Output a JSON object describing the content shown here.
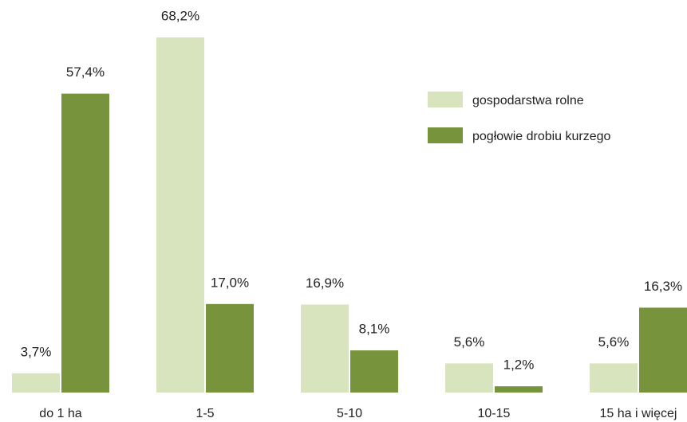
{
  "chart_data": {
    "type": "bar",
    "categories": [
      "do 1 ha",
      "1-5",
      "5-10",
      "10-15",
      "15 ha i więcej"
    ],
    "series": [
      {
        "name": "gospodarstwa rolne",
        "color": "#d7e4bd",
        "values": [
          3.7,
          68.2,
          16.9,
          5.6,
          5.6
        ],
        "value_labels": [
          "3,7%",
          "68,2%",
          "16,9%",
          "5,6%",
          "5,6%"
        ]
      },
      {
        "name": "pogłowie drobiu kurzego",
        "color": "#77933c",
        "values": [
          57.4,
          17.0,
          8.1,
          1.2,
          16.3
        ],
        "value_labels": [
          "57,4%",
          "17,0%",
          "8,1%",
          "1,2%",
          "16,3%"
        ]
      }
    ],
    "legend": "upper right"
  }
}
